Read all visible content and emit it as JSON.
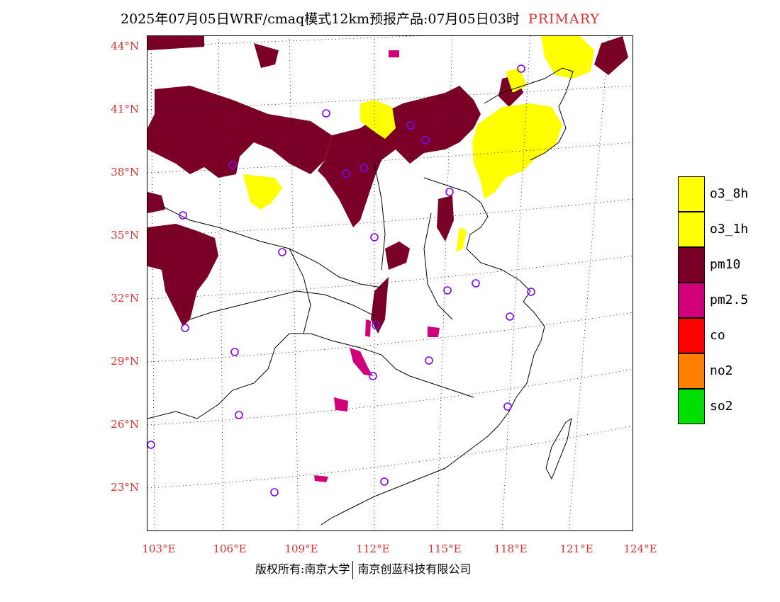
{
  "title": {
    "main": "2025年07月05日WRF/cmaq模式12km预报产品:07月05日03时",
    "tag": "PRIMARY"
  },
  "latitude_labels": [
    "44°N",
    "41°N",
    "38°N",
    "35°N",
    "32°N",
    "29°N",
    "26°N",
    "23°N"
  ],
  "longitude_labels": [
    "103°E",
    "106°E",
    "109°E",
    "112°E",
    "115°E",
    "118°E",
    "121°E",
    "124°E"
  ],
  "legend": [
    {
      "label": "o3_8h",
      "color": "#ffff00"
    },
    {
      "label": "o3_1h",
      "color": "#ffff00"
    },
    {
      "label": "pm10",
      "color": "#7a0028"
    },
    {
      "label": "pm2.5",
      "color": "#d0007a"
    },
    {
      "label": "co",
      "color": "#ff0000"
    },
    {
      "label": "no2",
      "color": "#ff8000"
    },
    {
      "label": "so2",
      "color": "#00e000"
    }
  ],
  "footer": {
    "left": "版权所有:南京大学",
    "right": "南京创蓝科技有限公司"
  },
  "colors": {
    "accent": "#e03030",
    "station_marker": "#8000ff"
  }
}
